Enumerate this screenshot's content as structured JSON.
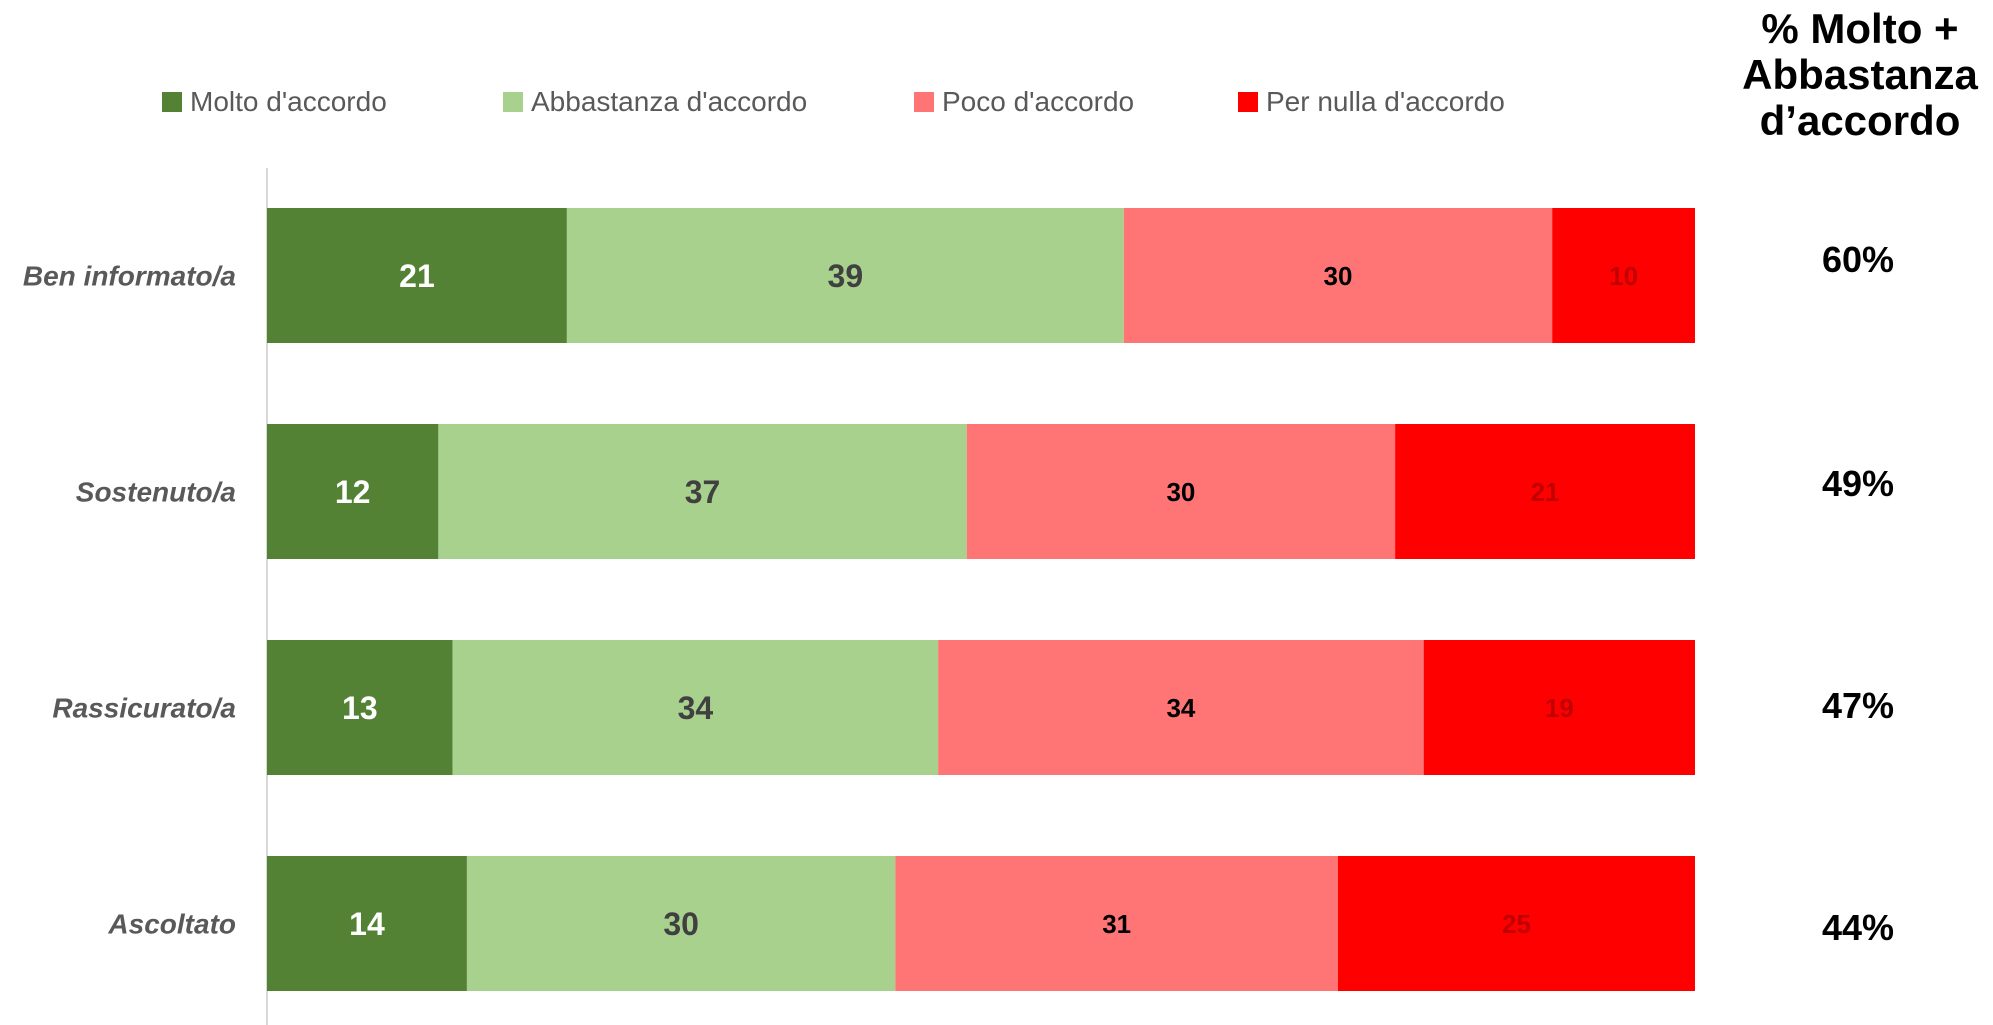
{
  "legend": [
    {
      "label": "Molto d'accordo",
      "color": "#548235"
    },
    {
      "label": "Abbastanza d'accordo",
      "color": "#a9d18e"
    },
    {
      "label": "Poco d'accordo",
      "color": "#ff7575"
    },
    {
      "label": "Per nulla d'accordo",
      "color": "#ff0000"
    }
  ],
  "summary_header": "% Molto +\nAbbastanza\nd’accordo",
  "chart_data": {
    "type": "bar",
    "orientation": "horizontal",
    "stacked": true,
    "categories": [
      "Ben informato/a",
      "Sostenuto/a",
      "Rassicurato/a",
      "Ascoltato"
    ],
    "series": [
      {
        "name": "Molto d'accordo",
        "values": [
          21,
          12,
          13,
          14
        ],
        "color": "#548235"
      },
      {
        "name": "Abbastanza d'accordo",
        "values": [
          39,
          37,
          34,
          30
        ],
        "color": "#a9d18e"
      },
      {
        "name": "Poco d'accordo",
        "values": [
          30,
          30,
          34,
          31
        ],
        "color": "#ff7575"
      },
      {
        "name": "Per nulla d'accordo",
        "values": [
          10,
          21,
          19,
          25
        ],
        "color": "#ff0000"
      }
    ],
    "xlim": [
      0,
      100
    ],
    "summary": [
      "60%",
      "49%",
      "47%",
      "44%"
    ],
    "legend_position": "top"
  }
}
